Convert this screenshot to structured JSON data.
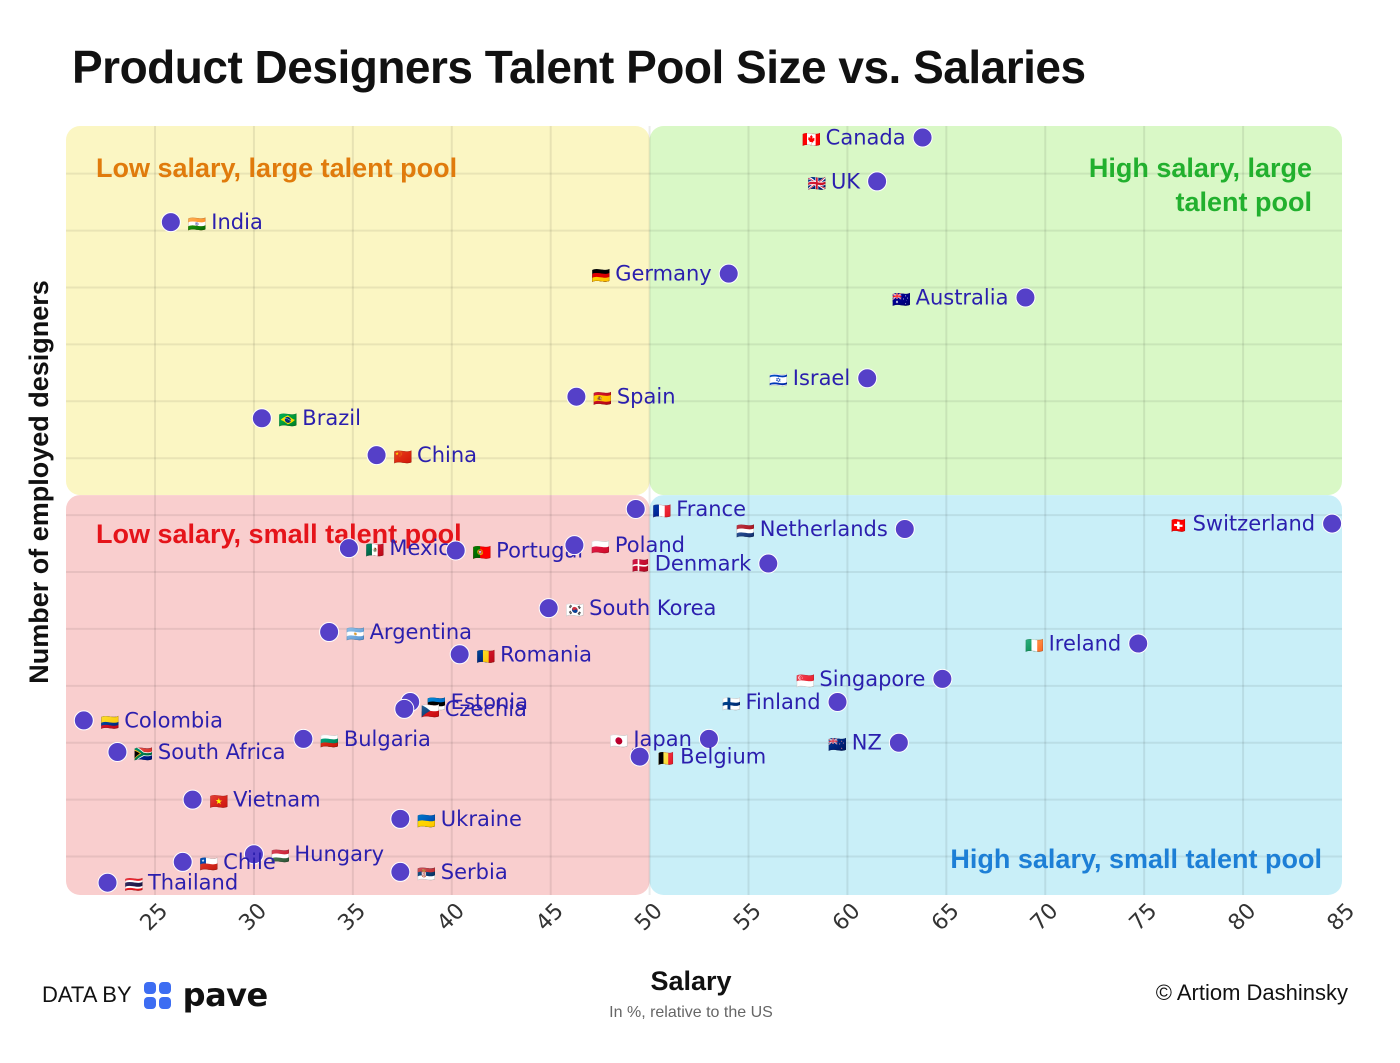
{
  "chart_data": {
    "type": "scatter",
    "title": "Product Designers Talent Pool Size vs. Salaries",
    "xlabel": "Salary",
    "xlabel_sub": "In %, relative to the US",
    "ylabel": "Number of employed designers",
    "xlim": [
      20.5,
      85
    ],
    "ylim": [
      0,
      100
    ],
    "x_ticks": [
      25,
      30,
      35,
      40,
      45,
      50,
      55,
      60,
      65,
      70,
      75,
      80,
      85
    ],
    "x_divider": 50,
    "y_divider": 52,
    "quadrants": [
      {
        "name": "low-salary-large-pool",
        "label": "Low salary, large talent pool",
        "color": "#fbf6c3",
        "text_color": "#e07b0c"
      },
      {
        "name": "high-salary-large-pool",
        "label": "High salary, large talent pool",
        "color": "#d9f8c6",
        "text_color": "#22b02e"
      },
      {
        "name": "low-salary-small-pool",
        "label": "Low salary, small talent pool",
        "color": "#f9cece",
        "text_color": "#e5141a"
      },
      {
        "name": "high-salary-small-pool",
        "label": "High salary, small talent pool",
        "color": "#c9eff8",
        "text_color": "#1d7fd6"
      }
    ],
    "point_color": "#5540c8",
    "label_color": "#2b1fae",
    "points": [
      {
        "country": "Canada",
        "flag": "🇨🇦",
        "x": 63.8,
        "y": 98.5,
        "side": "left"
      },
      {
        "country": "UK",
        "flag": "🇬🇧",
        "x": 61.5,
        "y": 92.8,
        "side": "left"
      },
      {
        "country": "India",
        "flag": "🇮🇳",
        "x": 25.8,
        "y": 87.5,
        "side": "right"
      },
      {
        "country": "Germany",
        "flag": "🇩🇪",
        "x": 54.0,
        "y": 80.8,
        "side": "left"
      },
      {
        "country": "Australia",
        "flag": "🇦🇺",
        "x": 69.0,
        "y": 77.7,
        "side": "left"
      },
      {
        "country": "Israel",
        "flag": "🇮🇱",
        "x": 61.0,
        "y": 67.2,
        "side": "left"
      },
      {
        "country": "Spain",
        "flag": "🇪🇸",
        "x": 46.3,
        "y": 64.8,
        "side": "right"
      },
      {
        "country": "Brazil",
        "flag": "🇧🇷",
        "x": 30.4,
        "y": 62.0,
        "side": "right"
      },
      {
        "country": "China",
        "flag": "🇨🇳",
        "x": 36.2,
        "y": 57.2,
        "side": "right"
      },
      {
        "country": "France",
        "flag": "🇫🇷",
        "x": 49.3,
        "y": 50.2,
        "side": "right"
      },
      {
        "country": "Netherlands",
        "flag": "🇳🇱",
        "x": 62.9,
        "y": 47.6,
        "side": "left"
      },
      {
        "country": "Switzerland",
        "flag": "🇨🇭",
        "x": 84.5,
        "y": 48.3,
        "side": "left"
      },
      {
        "country": "Mexico",
        "flag": "🇲🇽",
        "x": 34.8,
        "y": 45.1,
        "side": "right"
      },
      {
        "country": "Portugal",
        "flag": "🇵🇹",
        "x": 40.2,
        "y": 44.8,
        "side": "right"
      },
      {
        "country": "Poland",
        "flag": "🇵🇱",
        "x": 46.2,
        "y": 45.5,
        "side": "right"
      },
      {
        "country": "Denmark",
        "flag": "🇩🇰",
        "x": 56.0,
        "y": 43.1,
        "side": "left"
      },
      {
        "country": "South Korea",
        "flag": "🇰🇷",
        "x": 44.9,
        "y": 37.3,
        "side": "right"
      },
      {
        "country": "Argentina",
        "flag": "🇦🇷",
        "x": 33.8,
        "y": 34.2,
        "side": "right"
      },
      {
        "country": "Ireland",
        "flag": "🇮🇪",
        "x": 74.7,
        "y": 32.7,
        "side": "left"
      },
      {
        "country": "Romania",
        "flag": "🇷🇴",
        "x": 40.4,
        "y": 31.3,
        "side": "right"
      },
      {
        "country": "Singapore",
        "flag": "🇸🇬",
        "x": 64.8,
        "y": 28.1,
        "side": "left"
      },
      {
        "country": "Finland",
        "flag": "🇫🇮",
        "x": 59.5,
        "y": 25.1,
        "side": "left"
      },
      {
        "country": "Estonia",
        "flag": "🇪🇪",
        "x": 37.9,
        "y": 25.1,
        "side": "right"
      },
      {
        "country": "Czechia",
        "flag": "🇨🇿",
        "x": 37.6,
        "y": 24.2,
        "side": "right"
      },
      {
        "country": "Colombia",
        "flag": "🇨🇴",
        "x": 21.4,
        "y": 22.7,
        "side": "right"
      },
      {
        "country": "Bulgaria",
        "flag": "🇧🇬",
        "x": 32.5,
        "y": 20.3,
        "side": "right"
      },
      {
        "country": "Japan",
        "flag": "🇯🇵",
        "x": 53.0,
        "y": 20.3,
        "side": "left"
      },
      {
        "country": "NZ",
        "flag": "🇳🇿",
        "x": 62.6,
        "y": 19.8,
        "side": "left"
      },
      {
        "country": "South Africa",
        "flag": "🇿🇦",
        "x": 23.1,
        "y": 18.6,
        "side": "right"
      },
      {
        "country": "Belgium",
        "flag": "🇧🇪",
        "x": 49.5,
        "y": 18.0,
        "side": "right"
      },
      {
        "country": "Vietnam",
        "flag": "🇻🇳",
        "x": 26.9,
        "y": 12.4,
        "side": "right"
      },
      {
        "country": "Ukraine",
        "flag": "🇺🇦",
        "x": 37.4,
        "y": 9.9,
        "side": "right"
      },
      {
        "country": "Hungary",
        "flag": "🇭🇺",
        "x": 30.0,
        "y": 5.3,
        "side": "right"
      },
      {
        "country": "Chile",
        "flag": "🇨🇱",
        "x": 26.4,
        "y": 4.3,
        "side": "right"
      },
      {
        "country": "Serbia",
        "flag": "🇷🇸",
        "x": 37.4,
        "y": 3.0,
        "side": "right"
      },
      {
        "country": "Thailand",
        "flag": "🇹🇭",
        "x": 22.6,
        "y": 1.6,
        "side": "right"
      }
    ]
  },
  "footer": {
    "data_by": "DATA BY",
    "brand": "pave",
    "copyright": "© Artiom Dashinsky"
  }
}
